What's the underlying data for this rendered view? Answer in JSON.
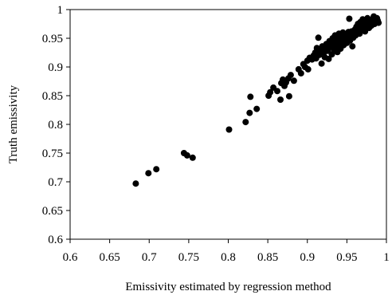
{
  "chart_data": {
    "type": "scatter",
    "title": "",
    "xlabel": "Emissivity estimated by regression method",
    "ylabel": "Truth emissivity",
    "xlim": [
      0.6,
      1.0
    ],
    "ylim": [
      0.6,
      1.0
    ],
    "x_ticks": [
      "0.6",
      "0.65",
      "0.7",
      "0.75",
      "0.8",
      "0.85",
      "0.9",
      "0.95",
      "1"
    ],
    "y_ticks": [
      "0.6",
      "0.65",
      "0.7",
      "0.75",
      "0.8",
      "0.85",
      "0.9",
      "0.95",
      "1"
    ],
    "grid": false,
    "legend": "none",
    "marker_color": "#000000",
    "points": [
      [
        0.683,
        0.697
      ],
      [
        0.699,
        0.715
      ],
      [
        0.709,
        0.722
      ],
      [
        0.744,
        0.75
      ],
      [
        0.748,
        0.746
      ],
      [
        0.755,
        0.742
      ],
      [
        0.801,
        0.791
      ],
      [
        0.822,
        0.804
      ],
      [
        0.827,
        0.82
      ],
      [
        0.828,
        0.848
      ],
      [
        0.836,
        0.827
      ],
      [
        0.851,
        0.85
      ],
      [
        0.853,
        0.856
      ],
      [
        0.857,
        0.864
      ],
      [
        0.862,
        0.858
      ],
      [
        0.866,
        0.843
      ],
      [
        0.867,
        0.872
      ],
      [
        0.869,
        0.878
      ],
      [
        0.871,
        0.867
      ],
      [
        0.873,
        0.873
      ],
      [
        0.876,
        0.88
      ],
      [
        0.877,
        0.849
      ],
      [
        0.879,
        0.886
      ],
      [
        0.883,
        0.876
      ],
      [
        0.889,
        0.896
      ],
      [
        0.892,
        0.889
      ],
      [
        0.895,
        0.905
      ],
      [
        0.897,
        0.9
      ],
      [
        0.9,
        0.911
      ],
      [
        0.901,
        0.896
      ],
      [
        0.903,
        0.916
      ],
      [
        0.906,
        0.913
      ],
      [
        0.908,
        0.92
      ],
      [
        0.91,
        0.925
      ],
      [
        0.911,
        0.915
      ],
      [
        0.912,
        0.933
      ],
      [
        0.914,
        0.951
      ],
      [
        0.915,
        0.921
      ],
      [
        0.917,
        0.928
      ],
      [
        0.918,
        0.906
      ],
      [
        0.919,
        0.936
      ],
      [
        0.921,
        0.925
      ],
      [
        0.922,
        0.917
      ],
      [
        0.923,
        0.932
      ],
      [
        0.924,
        0.94
      ],
      [
        0.926,
        0.928
      ],
      [
        0.927,
        0.914
      ],
      [
        0.928,
        0.945
      ],
      [
        0.929,
        0.935
      ],
      [
        0.931,
        0.922
      ],
      [
        0.932,
        0.95
      ],
      [
        0.933,
        0.94
      ],
      [
        0.934,
        0.93
      ],
      [
        0.935,
        0.955
      ],
      [
        0.936,
        0.945
      ],
      [
        0.937,
        0.936
      ],
      [
        0.938,
        0.926
      ],
      [
        0.939,
        0.95
      ],
      [
        0.94,
        0.958
      ],
      [
        0.941,
        0.941
      ],
      [
        0.942,
        0.932
      ],
      [
        0.943,
        0.952
      ],
      [
        0.944,
        0.945
      ],
      [
        0.945,
        0.96
      ],
      [
        0.946,
        0.938
      ],
      [
        0.947,
        0.953
      ],
      [
        0.948,
        0.948
      ],
      [
        0.949,
        0.956
      ],
      [
        0.95,
        0.942
      ],
      [
        0.951,
        0.951
      ],
      [
        0.952,
        0.961
      ],
      [
        0.953,
        0.984
      ],
      [
        0.954,
        0.946
      ],
      [
        0.955,
        0.955
      ],
      [
        0.956,
        0.962
      ],
      [
        0.957,
        0.936
      ],
      [
        0.958,
        0.951
      ],
      [
        0.959,
        0.958
      ],
      [
        0.96,
        0.965
      ],
      [
        0.961,
        0.955
      ],
      [
        0.962,
        0.97
      ],
      [
        0.963,
        0.96
      ],
      [
        0.964,
        0.975
      ],
      [
        0.965,
        0.966
      ],
      [
        0.966,
        0.958
      ],
      [
        0.967,
        0.978
      ],
      [
        0.968,
        0.963
      ],
      [
        0.969,
        0.97
      ],
      [
        0.97,
        0.983
      ],
      [
        0.971,
        0.967
      ],
      [
        0.972,
        0.974
      ],
      [
        0.973,
        0.962
      ],
      [
        0.974,
        0.979
      ],
      [
        0.975,
        0.97
      ],
      [
        0.976,
        0.985
      ],
      [
        0.977,
        0.975
      ],
      [
        0.978,
        0.968
      ],
      [
        0.979,
        0.98
      ],
      [
        0.98,
        0.976
      ],
      [
        0.981,
        0.972
      ],
      [
        0.982,
        0.983
      ],
      [
        0.983,
        0.978
      ],
      [
        0.984,
        0.988
      ],
      [
        0.985,
        0.975
      ],
      [
        0.986,
        0.982
      ],
      [
        0.987,
        0.979
      ],
      [
        0.988,
        0.985
      ],
      [
        0.989,
        0.981
      ],
      [
        0.99,
        0.977
      ]
    ]
  }
}
